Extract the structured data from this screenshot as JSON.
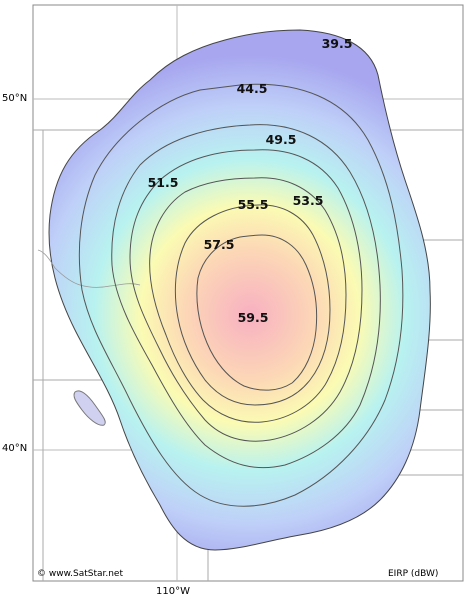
{
  "map": {
    "latitude_labels": {
      "n50": "50°N",
      "n40": "40°N"
    },
    "longitude_labels": {
      "w110": "110°W"
    },
    "copyright": "© www.SatStar.net",
    "units": "EIRP (dBW)",
    "contours": [
      {
        "id": "c39",
        "label": "39.5"
      },
      {
        "id": "c44",
        "label": "44.5"
      },
      {
        "id": "c49",
        "label": "49.5"
      },
      {
        "id": "c51",
        "label": "51.5"
      },
      {
        "id": "c53",
        "label": "53.5"
      },
      {
        "id": "c55",
        "label": "55.5"
      },
      {
        "id": "c57",
        "label": "57.5"
      },
      {
        "id": "c59",
        "label": "59.5"
      }
    ],
    "colors": {
      "outer": "#a9a8f0",
      "cyan": "#b8f1f2",
      "yellow": "#fbfbb3",
      "peak": "#f9b6c4",
      "contour_line": "#555555",
      "grid": "#bbbbbb"
    }
  }
}
